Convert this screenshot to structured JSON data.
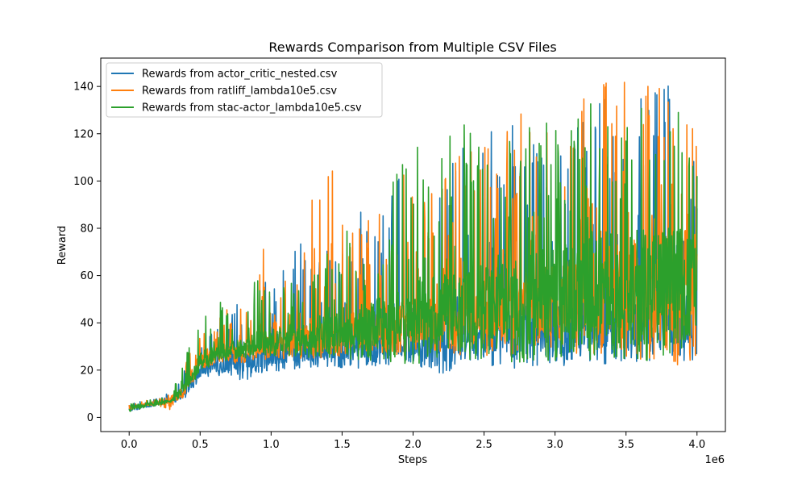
{
  "chart_data": {
    "type": "line",
    "title": "Rewards Comparison from Multiple CSV Files",
    "xlabel": "Steps",
    "ylabel": "Reward",
    "x_offset_label": "1e6",
    "xlim": [
      -200000,
      4200000
    ],
    "ylim": [
      -6,
      152
    ],
    "x_ticks": [
      0,
      500000,
      1000000,
      1500000,
      2000000,
      2500000,
      3000000,
      3500000,
      4000000
    ],
    "x_tick_labels": [
      "0.0",
      "0.5",
      "1.0",
      "1.5",
      "2.0",
      "2.5",
      "3.0",
      "3.5",
      "4.0"
    ],
    "y_ticks": [
      0,
      20,
      40,
      60,
      80,
      100,
      120,
      140
    ],
    "y_tick_labels": [
      "0",
      "20",
      "40",
      "60",
      "80",
      "100",
      "120",
      "140"
    ],
    "legend_position": "top-left",
    "grid": false,
    "series": [
      {
        "name": "Rewards from actor_critic_nested.csv",
        "color": "#1f77b4",
        "x": [
          0,
          100000,
          200000,
          300000,
          400000,
          500000,
          600000,
          700000,
          800000,
          900000,
          1000000,
          1100000,
          1200000,
          1300000,
          1400000,
          1500000,
          1600000,
          1700000,
          1800000,
          1900000,
          2000000,
          2100000,
          2200000,
          2300000,
          2400000,
          2500000,
          2600000,
          2700000,
          2800000,
          2900000,
          3000000,
          3100000,
          3200000,
          3300000,
          3400000,
          3500000,
          3600000,
          3700000,
          3800000,
          3900000,
          4000000
        ],
        "y": [
          4,
          5,
          6,
          7,
          12,
          20,
          22,
          24,
          25,
          26,
          27,
          28,
          29,
          29,
          30,
          30,
          31,
          31,
          32,
          33,
          33,
          34,
          35,
          35,
          36,
          36,
          37,
          37,
          38,
          38,
          38,
          39,
          39,
          40,
          40,
          40,
          41,
          41,
          41,
          42,
          42
        ],
        "y_high": [
          6,
          7,
          8,
          11,
          22,
          30,
          38,
          45,
          50,
          55,
          60,
          68,
          75,
          72,
          75,
          80,
          85,
          92,
          100,
          102,
          105,
          108,
          112,
          115,
          118,
          120,
          122,
          124,
          126,
          128,
          130,
          133,
          140,
          136,
          138,
          140,
          138,
          141,
          145,
          140,
          130
        ],
        "y_low": [
          2,
          4,
          5,
          6,
          8,
          16,
          18,
          17,
          15,
          18,
          19,
          20,
          20,
          21,
          21,
          20,
          20,
          22,
          21,
          22,
          22,
          20,
          18,
          21,
          22,
          21,
          22,
          21,
          20,
          21,
          21,
          22,
          22,
          22,
          23,
          22,
          23,
          23,
          23,
          24,
          24
        ]
      },
      {
        "name": "Rewards from ratliff_lambda10e5.csv",
        "color": "#ff7f0e",
        "x": [
          0,
          100000,
          200000,
          300000,
          400000,
          500000,
          600000,
          700000,
          800000,
          900000,
          1000000,
          1100000,
          1200000,
          1300000,
          1400000,
          1500000,
          1600000,
          1700000,
          1800000,
          1900000,
          2000000,
          2100000,
          2200000,
          2300000,
          2400000,
          2500000,
          2600000,
          2700000,
          2800000,
          2900000,
          3000000,
          3100000,
          3200000,
          3300000,
          3400000,
          3500000,
          3600000,
          3700000,
          3800000,
          3900000,
          4000000
        ],
        "y": [
          4,
          5,
          6,
          7,
          13,
          25,
          27,
          28,
          29,
          30,
          31,
          32,
          33,
          34,
          35,
          36,
          37,
          38,
          39,
          40,
          41,
          42,
          43,
          44,
          45,
          46,
          47,
          48,
          49,
          50,
          51,
          52,
          53,
          54,
          55,
          56,
          57,
          58,
          58,
          58,
          58
        ],
        "y_high": [
          6,
          7,
          8,
          10,
          24,
          35,
          40,
          48,
          55,
          79,
          62,
          70,
          66,
          98,
          120,
          85,
          80,
          86,
          88,
          103,
          106,
          104,
          108,
          110,
          118,
          122,
          128,
          125,
          132,
          134,
          136,
          138,
          140,
          142,
          144,
          145,
          143,
          143,
          142,
          137,
          131
        ],
        "y_low": [
          3,
          5,
          5,
          3,
          10,
          20,
          22,
          23,
          23,
          24,
          24,
          25,
          25,
          25,
          25,
          25,
          26,
          26,
          26,
          26,
          26,
          26,
          26,
          26,
          26,
          26,
          26,
          26,
          26,
          26,
          26,
          26,
          26,
          26,
          25,
          25,
          24,
          24,
          24,
          21,
          26
        ]
      },
      {
        "name": "Rewards from stac-actor_lambda10e5.csv",
        "color": "#2ca02c",
        "x": [
          0,
          100000,
          200000,
          300000,
          400000,
          500000,
          600000,
          700000,
          800000,
          900000,
          1000000,
          1100000,
          1200000,
          1300000,
          1400000,
          1500000,
          1600000,
          1700000,
          1800000,
          1900000,
          2000000,
          2100000,
          2200000,
          2300000,
          2400000,
          2500000,
          2600000,
          2700000,
          2800000,
          2900000,
          3000000,
          3100000,
          3200000,
          3300000,
          3400000,
          3500000,
          3600000,
          3700000,
          3800000,
          3900000,
          4000000
        ],
        "y": [
          4,
          5,
          6,
          7,
          14,
          24,
          27,
          29,
          30,
          32,
          33,
          34,
          35,
          36,
          37,
          38,
          39,
          40,
          41,
          42,
          44,
          45,
          46,
          47,
          48,
          49,
          50,
          51,
          52,
          53,
          54,
          55,
          56,
          57,
          58,
          59,
          60,
          60,
          60,
          60,
          60
        ],
        "y_high": [
          6,
          7,
          8,
          10,
          28,
          40,
          51,
          49,
          58,
          60,
          62,
          64,
          66,
          68,
          70,
          78,
          82,
          90,
          98,
          104,
          116,
          112,
          118,
          124,
          129,
          126,
          128,
          125,
          130,
          132,
          133,
          133,
          134,
          134,
          133,
          135,
          133,
          134,
          135,
          133,
          115
        ],
        "y_low": [
          2,
          4,
          5,
          6,
          10,
          19,
          22,
          24,
          25,
          25,
          26,
          26,
          26,
          25,
          25,
          24,
          24,
          24,
          24,
          23,
          22,
          22,
          22,
          23,
          23,
          23,
          23,
          23,
          23,
          23,
          23,
          23,
          23,
          23,
          24,
          24,
          24,
          24,
          25,
          25,
          40
        ]
      }
    ]
  }
}
